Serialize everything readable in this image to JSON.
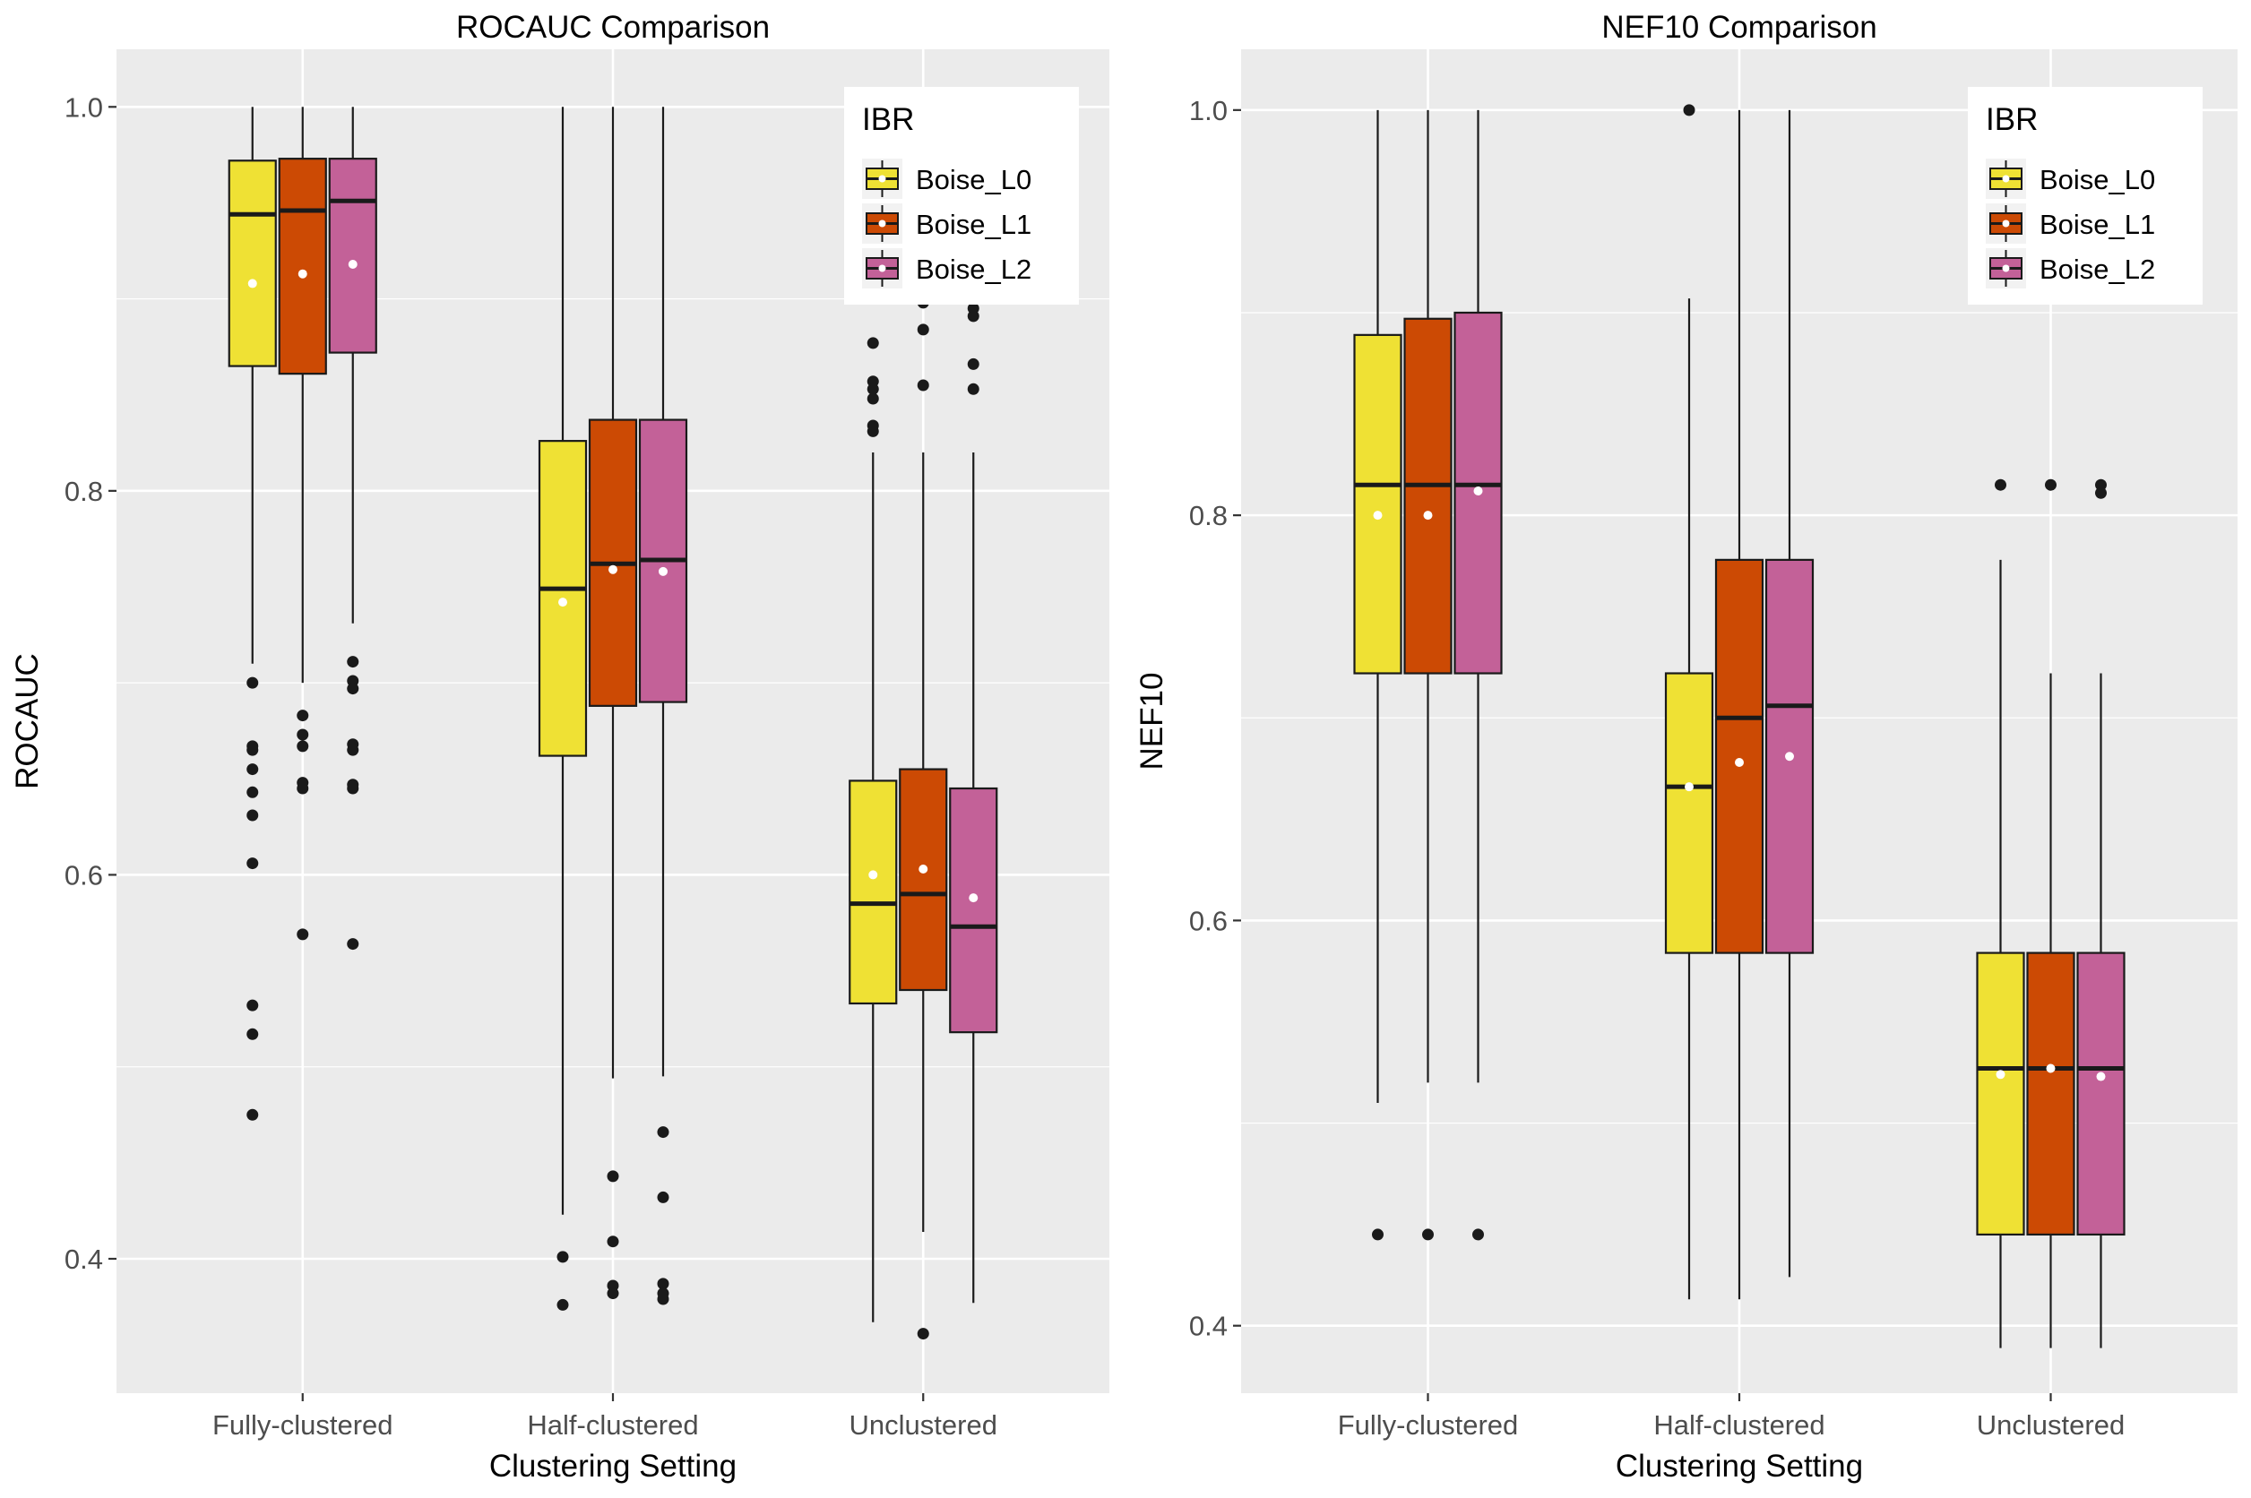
{
  "chart_data": [
    {
      "type": "boxplot",
      "title": "ROCAUC Comparison",
      "xlabel": "Clustering Setting",
      "ylabel": "ROCAUC",
      "categories": [
        "Fully-clustered",
        "Half-clustered",
        "Unclustered"
      ],
      "ylim": [
        0.33,
        1.03
      ],
      "yticks": [
        0.4,
        0.6,
        0.8,
        1.0
      ],
      "ytick_labels": [
        "0.4",
        "0.6",
        "0.8",
        "1.0"
      ],
      "grid": true,
      "legend": {
        "title": "IBR",
        "position": "top-right"
      },
      "series": [
        {
          "name": "Boise_L0",
          "color": "#EFE134",
          "boxes": [
            {
              "category": "Fully-clustered",
              "whisker_low": 0.71,
              "q1": 0.865,
              "median": 0.944,
              "q3": 0.972,
              "whisker_high": 1.0,
              "mean": 0.908,
              "outliers": [
                0.7,
                0.667,
                0.665,
                0.655,
                0.643,
                0.631,
                0.606,
                0.532,
                0.517,
                0.475
              ]
            },
            {
              "category": "Half-clustered",
              "whisker_low": 0.423,
              "q1": 0.662,
              "median": 0.749,
              "q3": 0.826,
              "whisker_high": 1.0,
              "mean": 0.742,
              "outliers": [
                0.401,
                0.376
              ]
            },
            {
              "category": "Unclustered",
              "whisker_low": 0.367,
              "q1": 0.533,
              "median": 0.585,
              "q3": 0.649,
              "whisker_high": 0.82,
              "mean": 0.6,
              "outliers": [
                0.877,
                0.857,
                0.853,
                0.848,
                0.834,
                0.831
              ]
            }
          ]
        },
        {
          "name": "Boise_L1",
          "color": "#CC4A04",
          "boxes": [
            {
              "category": "Fully-clustered",
              "whisker_low": 0.7,
              "q1": 0.861,
              "median": 0.946,
              "q3": 0.973,
              "whisker_high": 1.0,
              "mean": 0.913,
              "outliers": [
                0.683,
                0.673,
                0.667,
                0.648,
                0.645,
                0.569
              ]
            },
            {
              "category": "Half-clustered",
              "whisker_low": 0.494,
              "q1": 0.688,
              "median": 0.762,
              "q3": 0.837,
              "whisker_high": 1.0,
              "mean": 0.759,
              "outliers": [
                0.443,
                0.409,
                0.386,
                0.382
              ]
            },
            {
              "category": "Unclustered",
              "whisker_low": 0.414,
              "q1": 0.54,
              "median": 0.59,
              "q3": 0.655,
              "whisker_high": 0.82,
              "mean": 0.603,
              "outliers": [
                0.898,
                0.884,
                0.855,
                0.361
              ]
            }
          ]
        },
        {
          "name": "Boise_L2",
          "color": "#C36198",
          "boxes": [
            {
              "category": "Fully-clustered",
              "whisker_low": 0.731,
              "q1": 0.872,
              "median": 0.951,
              "q3": 0.973,
              "whisker_high": 1.0,
              "mean": 0.918,
              "outliers": [
                0.711,
                0.701,
                0.697,
                0.668,
                0.665,
                0.647,
                0.645,
                0.564
              ]
            },
            {
              "category": "Half-clustered",
              "whisker_low": 0.495,
              "q1": 0.69,
              "median": 0.764,
              "q3": 0.837,
              "whisker_high": 1.0,
              "mean": 0.758,
              "outliers": [
                0.466,
                0.432,
                0.387,
                0.382,
                0.379
              ]
            },
            {
              "category": "Unclustered",
              "whisker_low": 0.377,
              "q1": 0.518,
              "median": 0.573,
              "q3": 0.645,
              "whisker_high": 0.82,
              "mean": 0.588,
              "outliers": [
                0.906,
                0.895,
                0.891,
                0.866,
                0.853
              ]
            }
          ]
        }
      ]
    },
    {
      "type": "boxplot",
      "title": "NEF10 Comparison",
      "xlabel": "Clustering Setting",
      "ylabel": "NEF10",
      "categories": [
        "Fully-clustered",
        "Half-clustered",
        "Unclustered"
      ],
      "ylim": [
        0.3667,
        1.03
      ],
      "yticks": [
        0.4,
        0.6,
        0.8,
        1.0
      ],
      "ytick_labels": [
        "0.4",
        "0.6",
        "0.8",
        "1.0"
      ],
      "grid": true,
      "legend": {
        "title": "IBR",
        "position": "top-right"
      },
      "series": [
        {
          "name": "Boise_L0",
          "color": "#EFE134",
          "boxes": [
            {
              "category": "Fully-clustered",
              "whisker_low": 0.51,
              "q1": 0.722,
              "median": 0.815,
              "q3": 0.889,
              "whisker_high": 1.0,
              "mean": 0.8,
              "outliers": [
                0.445
              ]
            },
            {
              "category": "Half-clustered",
              "whisker_low": 0.413,
              "q1": 0.584,
              "median": 0.666,
              "q3": 0.722,
              "whisker_high": 0.907,
              "mean": 0.666,
              "outliers": [
                1.0
              ]
            },
            {
              "category": "Unclustered",
              "whisker_low": 0.389,
              "q1": 0.445,
              "median": 0.527,
              "q3": 0.584,
              "whisker_high": 0.778,
              "mean": 0.524,
              "outliers": [
                0.815
              ]
            }
          ]
        },
        {
          "name": "Boise_L1",
          "color": "#CC4A04",
          "boxes": [
            {
              "category": "Fully-clustered",
              "whisker_low": 0.52,
              "q1": 0.722,
              "median": 0.815,
              "q3": 0.897,
              "whisker_high": 1.0,
              "mean": 0.8,
              "outliers": [
                0.445
              ]
            },
            {
              "category": "Half-clustered",
              "whisker_low": 0.413,
              "q1": 0.584,
              "median": 0.7,
              "q3": 0.778,
              "whisker_high": 1.0,
              "mean": 0.678,
              "outliers": []
            },
            {
              "category": "Unclustered",
              "whisker_low": 0.389,
              "q1": 0.445,
              "median": 0.527,
              "q3": 0.584,
              "whisker_high": 0.722,
              "mean": 0.527,
              "outliers": [
                0.815
              ]
            }
          ]
        },
        {
          "name": "Boise_L2",
          "color": "#C36198",
          "boxes": [
            {
              "category": "Fully-clustered",
              "whisker_low": 0.52,
              "q1": 0.722,
              "median": 0.815,
              "q3": 0.9,
              "whisker_high": 1.0,
              "mean": 0.812,
              "outliers": [
                0.445
              ]
            },
            {
              "category": "Half-clustered",
              "whisker_low": 0.424,
              "q1": 0.584,
              "median": 0.706,
              "q3": 0.778,
              "whisker_high": 1.0,
              "mean": 0.681,
              "outliers": []
            },
            {
              "category": "Unclustered",
              "whisker_low": 0.389,
              "q1": 0.445,
              "median": 0.527,
              "q3": 0.584,
              "whisker_high": 0.722,
              "mean": 0.523,
              "outliers": [
                0.815,
                0.811
              ]
            }
          ]
        }
      ]
    }
  ]
}
